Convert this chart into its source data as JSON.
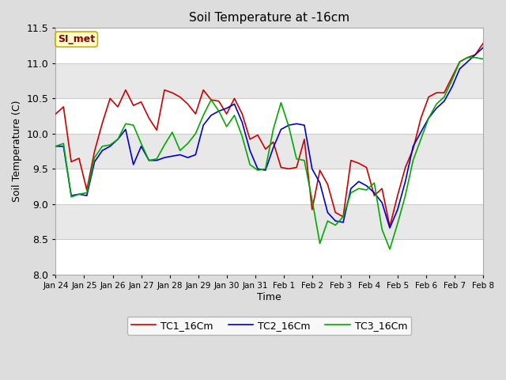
{
  "title": "Soil Temperature at -16cm",
  "xlabel": "Time",
  "ylabel": "Soil Temperature (C)",
  "ylim": [
    8.0,
    11.5
  ],
  "background_color": "#dddddd",
  "plot_bg_color": "#dddddd",
  "band_colors": [
    "#ffffff",
    "#e8e8e8"
  ],
  "grid_color": "#cccccc",
  "line_colors": {
    "TC1_16Cm": "#cc0000",
    "TC2_16Cm": "#0000cc",
    "TC3_16Cm": "#00aa00"
  },
  "annotation_text": "SI_met",
  "annotation_bg": "#ffffcc",
  "annotation_border": "#ccaa00",
  "annotation_text_color": "#880000",
  "tick_labels": [
    "Jan 24",
    "Jan 25",
    "Jan 26",
    "Jan 27",
    "Jan 28",
    "Jan 29",
    "Jan 30",
    "Jan 31",
    "Feb 1",
    "Feb 2",
    "Feb 3",
    "Feb 4",
    "Feb 5",
    "Feb 6",
    "Feb 7",
    "Feb 8"
  ],
  "TC1_values": [
    10.28,
    10.38,
    9.6,
    9.65,
    9.2,
    9.75,
    10.15,
    10.5,
    10.38,
    10.62,
    10.4,
    10.45,
    10.22,
    10.05,
    10.62,
    10.58,
    10.52,
    10.42,
    10.28,
    10.62,
    10.48,
    10.46,
    10.28,
    10.5,
    10.28,
    9.92,
    9.98,
    9.78,
    9.88,
    9.52,
    9.5,
    9.52,
    9.92,
    8.92,
    9.48,
    9.28,
    8.88,
    8.82,
    9.62,
    9.58,
    9.52,
    9.12,
    9.22,
    8.68,
    9.12,
    9.52,
    9.78,
    10.22,
    10.52,
    10.58,
    10.58,
    10.8,
    11.02,
    11.08,
    11.12,
    11.28
  ],
  "TC2_values": [
    9.82,
    9.82,
    9.12,
    9.14,
    9.12,
    9.6,
    9.76,
    9.82,
    9.92,
    10.06,
    9.56,
    9.82,
    9.62,
    9.62,
    9.66,
    9.68,
    9.7,
    9.66,
    9.7,
    10.12,
    10.26,
    10.32,
    10.36,
    10.42,
    10.16,
    9.76,
    9.5,
    9.48,
    9.8,
    10.06,
    10.12,
    10.14,
    10.12,
    9.5,
    9.3,
    8.88,
    8.76,
    8.74,
    9.22,
    9.32,
    9.26,
    9.16,
    9.02,
    8.66,
    8.92,
    9.32,
    9.82,
    10.02,
    10.22,
    10.36,
    10.46,
    10.66,
    10.92,
    11.02,
    11.12,
    11.22
  ],
  "TC3_values": [
    9.82,
    9.86,
    9.1,
    9.14,
    9.16,
    9.66,
    9.82,
    9.84,
    9.92,
    10.14,
    10.12,
    9.86,
    9.62,
    9.64,
    9.84,
    10.02,
    9.76,
    9.86,
    10.0,
    10.26,
    10.48,
    10.32,
    10.1,
    10.26,
    9.96,
    9.56,
    9.48,
    9.5,
    10.06,
    10.44,
    10.1,
    9.64,
    9.62,
    9.06,
    8.44,
    8.76,
    8.7,
    8.82,
    9.16,
    9.22,
    9.2,
    9.3,
    8.64,
    8.36,
    8.72,
    9.12,
    9.62,
    9.92,
    10.22,
    10.42,
    10.52,
    10.76,
    11.02,
    11.08,
    11.08,
    11.06
  ]
}
